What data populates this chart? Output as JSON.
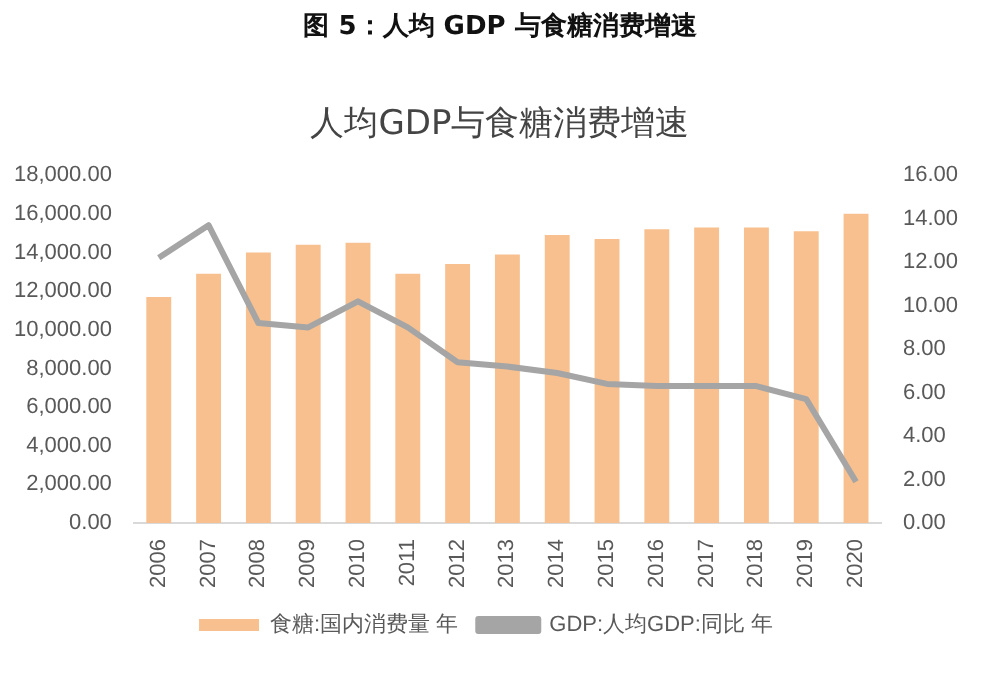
{
  "chart_data": {
    "type": "bar",
    "title": "图 5：人均 GDP 与食糖消费增速",
    "subtitle": "人均GDP与食糖消费增速",
    "categories": [
      "2006",
      "2007",
      "2008",
      "2009",
      "2010",
      "2011",
      "2012",
      "2013",
      "2014",
      "2015",
      "2016",
      "2017",
      "2018",
      "2019",
      "2020"
    ],
    "series": [
      {
        "name": "食糖:国内消费量 年",
        "color": "#f8c08e",
        "values": [
          11700,
          12900,
          14000,
          14400,
          14500,
          12900,
          13400,
          13900,
          14900,
          14700,
          15200,
          15300,
          15300,
          15100,
          16000
        ]
      },
      {
        "name": "GDP:人均GDP:同比 年",
        "type": "line",
        "axis": "y2",
        "color": "#a5a5a5",
        "values": [
          12.2,
          13.7,
          9.2,
          9.0,
          10.2,
          9.0,
          7.4,
          7.2,
          6.9,
          6.4,
          6.3,
          6.3,
          6.3,
          5.7,
          1.9
        ]
      }
    ],
    "ylim": [
      0,
      18000
    ],
    "yticks": [
      {
        "value": 0,
        "label": "0.00"
      },
      {
        "value": 2000,
        "label": "2,000.00"
      },
      {
        "value": 4000,
        "label": "4,000.00"
      },
      {
        "value": 6000,
        "label": "6,000.00"
      },
      {
        "value": 8000,
        "label": "8,000.00"
      },
      {
        "value": 10000,
        "label": "10,000.00"
      },
      {
        "value": 12000,
        "label": "12,000.00"
      },
      {
        "value": 14000,
        "label": "14,000.00"
      },
      {
        "value": 16000,
        "label": "16,000.00"
      },
      {
        "value": 18000,
        "label": "18,000.00"
      }
    ],
    "y2lim": [
      0,
      16
    ],
    "y2ticks": [
      {
        "value": 0,
        "label": "0.00"
      },
      {
        "value": 2,
        "label": "2.00"
      },
      {
        "value": 4,
        "label": "4.00"
      },
      {
        "value": 6,
        "label": "6.00"
      },
      {
        "value": 8,
        "label": "8.00"
      },
      {
        "value": 10,
        "label": "10.00"
      },
      {
        "value": 12,
        "label": "12.00"
      },
      {
        "value": 14,
        "label": "14.00"
      },
      {
        "value": 16,
        "label": "16.00"
      }
    ],
    "grid": false,
    "legend": "bottom",
    "marker": "none",
    "line_style": "solid"
  }
}
